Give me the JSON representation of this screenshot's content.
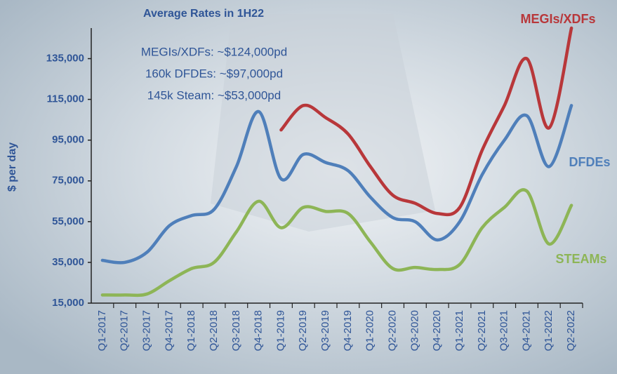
{
  "chart_data": {
    "type": "line",
    "title": "Average Rates in 1H22",
    "annotations": [
      "MEGIs/XDFs: ~$124,000pd",
      "160k DFDEs: ~$97,000pd",
      "145k Steam: ~$53,000pd"
    ],
    "y_label": "$ per day",
    "categories": [
      "Q1-2017",
      "Q2-2017",
      "Q3-2017",
      "Q4-2017",
      "Q1-2018",
      "Q2-2018",
      "Q3-2018",
      "Q4-2018",
      "Q1-2019",
      "Q2-2019",
      "Q3-2019",
      "Q4-2019",
      "Q1-2020",
      "Q2-2020",
      "Q3-2020",
      "Q4-2020",
      "Q1-2021",
      "Q2-2021",
      "Q3-2021",
      "Q4-2021",
      "Q1-2022",
      "Q2-2022"
    ],
    "series": [
      {
        "name": "MEGIs/XDFs",
        "color": "#b8373a",
        "values": [
          null,
          null,
          null,
          null,
          null,
          null,
          null,
          null,
          100000,
          112000,
          106000,
          98000,
          82000,
          68000,
          64000,
          59000,
          62000,
          90000,
          112000,
          135000,
          101000,
          150000
        ]
      },
      {
        "name": "DFDEs",
        "color": "#4f7fba",
        "values": [
          36000,
          35000,
          40000,
          53000,
          58000,
          61000,
          82000,
          109000,
          76000,
          88000,
          84000,
          80000,
          67000,
          57000,
          55000,
          46000,
          55000,
          78000,
          95000,
          107000,
          82000,
          112000
        ]
      },
      {
        "name": "STEAMs",
        "color": "#8db556",
        "values": [
          19000,
          19000,
          19500,
          26000,
          32000,
          35000,
          50000,
          65000,
          52000,
          62000,
          60000,
          59000,
          45000,
          32000,
          32500,
          31500,
          34000,
          52000,
          62000,
          70000,
          44000,
          63000
        ]
      }
    ],
    "ylim": [
      15000,
      150000
    ],
    "yticks": [
      {
        "value": 15000,
        "label": "15,000"
      },
      {
        "value": 35000,
        "label": "35,000"
      },
      {
        "value": 55000,
        "label": "55,000"
      },
      {
        "value": 75000,
        "label": "75,000"
      },
      {
        "value": 95000,
        "label": "95,000"
      },
      {
        "value": 115000,
        "label": "115,000"
      },
      {
        "value": 135000,
        "label": "135,000"
      }
    ]
  }
}
